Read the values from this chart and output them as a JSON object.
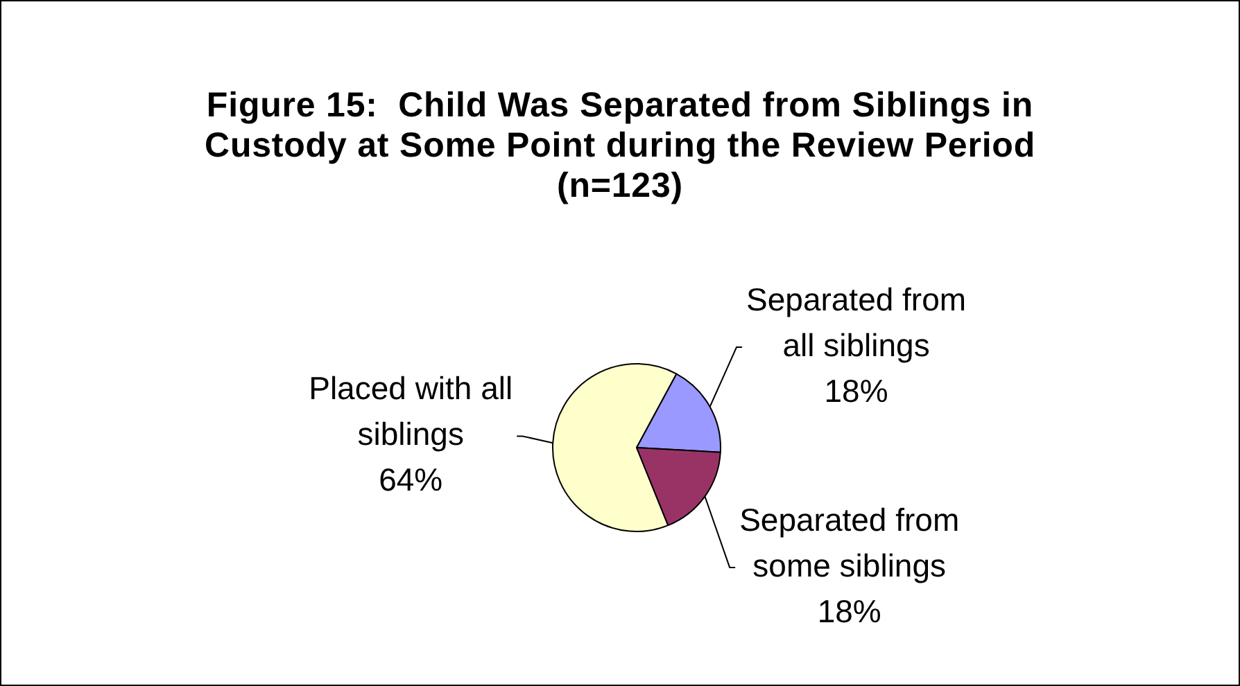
{
  "chart_data": {
    "type": "pie",
    "title": "Figure 15:  Child Was Separated from Siblings in Custody at Some Point during the Review Period (n=123)",
    "categories": [
      "Placed with all siblings",
      "Separated from all siblings",
      "Separated from some siblings"
    ],
    "values": [
      64,
      18,
      18
    ],
    "colors": [
      "#ffffcc",
      "#9999ff",
      "#993366"
    ],
    "value_labels": [
      "64%",
      "18%",
      "18%"
    ]
  }
}
